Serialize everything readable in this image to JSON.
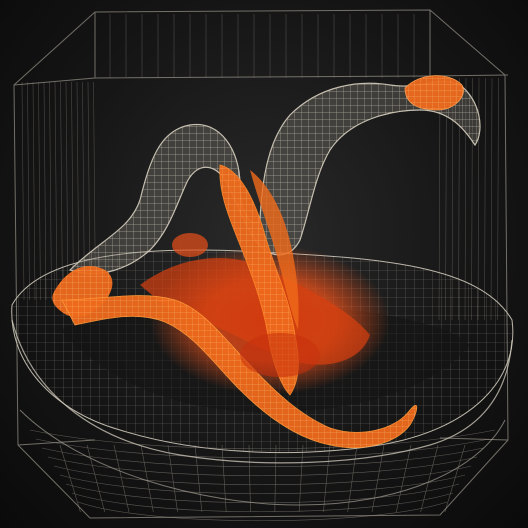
{
  "scene": {
    "subject": "wireframe-volume-with-orange-flow",
    "colors": {
      "background": "#111111",
      "wire": "#bdb7aa",
      "wire_dim": "#6f6b64",
      "lava_core": "#e8400f",
      "lava_mid": "#f06a1a",
      "lava_edge": "#ff9a3a"
    }
  }
}
